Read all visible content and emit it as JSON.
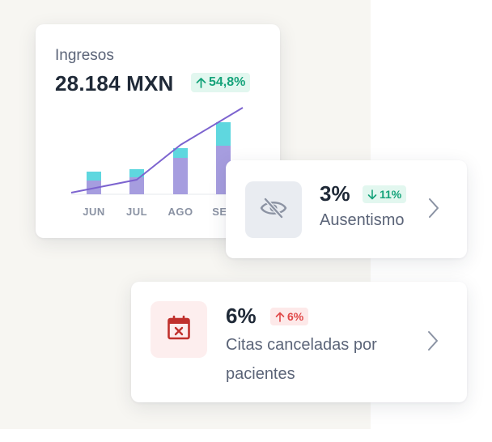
{
  "revenue": {
    "label": "Ingresos",
    "value": "28.184 MXN",
    "change": "54,8%",
    "change_direction": "up",
    "chart_data": {
      "type": "bar",
      "categories": [
        "JUN",
        "JUL",
        "AGO",
        "SEP"
      ],
      "series": [
        {
          "values": [
            17,
            21,
            45,
            60
          ]
        },
        {
          "values": [
            11,
            10,
            12,
            29
          ]
        }
      ],
      "line_values": [
        2,
        18,
        61,
        107
      ],
      "ylim": [
        0,
        110
      ],
      "grid": false
    }
  },
  "absence": {
    "percent": "3%",
    "change": "11%",
    "change_direction": "down",
    "label": "Ausentismo",
    "icon": "eye-off-icon"
  },
  "cancelled": {
    "percent": "6%",
    "change": "6%",
    "change_direction": "up",
    "label": "Citas canceladas por pacientes",
    "icon": "calendar-x-icon"
  },
  "colors": {
    "bar_bottom": "#a69ddf",
    "bar_top": "#5fd7df",
    "line": "#7c63cf",
    "positive": "#15a37a",
    "negative": "#e04848"
  }
}
